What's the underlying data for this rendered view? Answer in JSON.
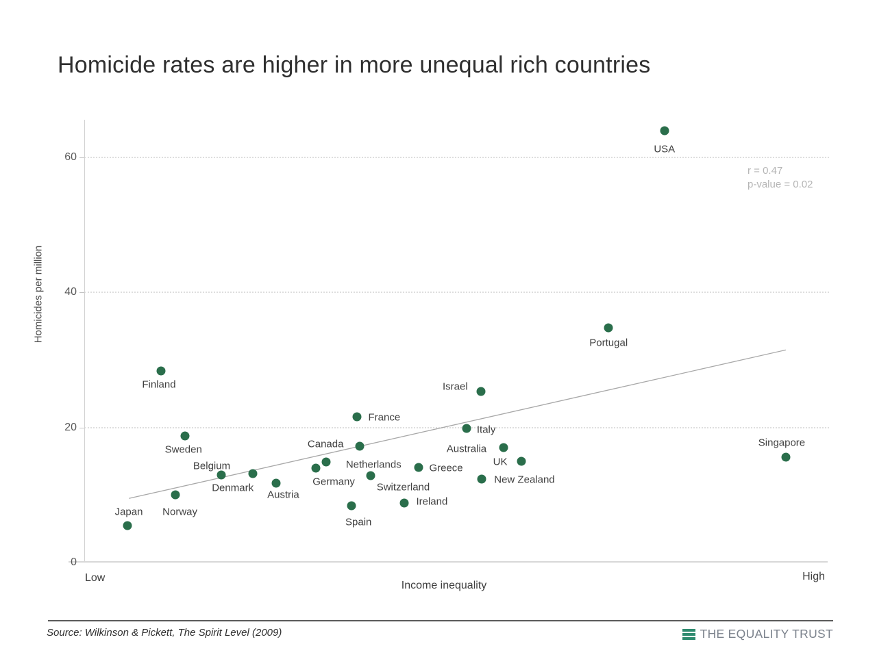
{
  "page": {
    "source": "Source: Wilkinson & Pickett, The Spirit Level (2009)",
    "logo_text": "THE EQUALITY TRUST",
    "colors": {
      "dot_green": "#2a6e4b",
      "logo_green": "#2e8b6f",
      "grid_gray": "#dedede",
      "trend_gray": "#a8a8a8",
      "annotation_gray": "#b5b5b5"
    }
  },
  "chart_data": {
    "type": "scatter",
    "title": "Homicide rates are higher in more unequal rich countries",
    "xlabel": "Income inequality",
    "ylabel": "Homicides per million",
    "x_endpoints": [
      "Low",
      "High"
    ],
    "y_ticks": [
      0,
      20,
      40,
      60
    ],
    "ylim": [
      0,
      65.6
    ],
    "xlim": [
      0,
      1
    ],
    "grid": "dotted horizontal at 20, 40, 60",
    "annotation": {
      "lines": [
        "r = 0.47",
        "p-value = 0.02"
      ]
    },
    "trendline": {
      "x1": 0.06,
      "y1": 9.5,
      "x2": 0.942,
      "y2": 31.5
    },
    "points": [
      {
        "name": "Japan",
        "x": 0.058,
        "y": 5.5,
        "label_offset": [
          2,
          -20
        ]
      },
      {
        "name": "Norway",
        "x": 0.122,
        "y": 10.0,
        "label_offset": [
          7,
          25
        ]
      },
      {
        "name": "Finland",
        "x": 0.103,
        "y": 28.4,
        "label_offset": [
          -3,
          20
        ]
      },
      {
        "name": "Sweden",
        "x": 0.135,
        "y": 18.8,
        "label_offset": [
          -2,
          20
        ]
      },
      {
        "name": "Belgium",
        "x": 0.184,
        "y": 13.0,
        "label_offset": [
          -14,
          -13
        ]
      },
      {
        "name": "Denmark",
        "x": 0.226,
        "y": 13.2,
        "label_offset": [
          -29,
          21
        ]
      },
      {
        "name": "Austria",
        "x": 0.258,
        "y": 11.8,
        "label_offset": [
          10,
          17
        ]
      },
      {
        "name": "Germany",
        "x": 0.311,
        "y": 14.0,
        "label_offset": [
          26,
          20
        ]
      },
      {
        "name": "Netherlands",
        "x": 0.325,
        "y": 14.9,
        "label_offset": [
          69,
          4
        ]
      },
      {
        "name": "Spain",
        "x": 0.359,
        "y": 8.4,
        "label_offset": [
          10,
          24
        ]
      },
      {
        "name": "France",
        "x": 0.366,
        "y": 21.6,
        "label_offset": [
          40,
          1
        ]
      },
      {
        "name": "Canada",
        "x": 0.37,
        "y": 17.2,
        "label_offset": [
          -50,
          -3
        ]
      },
      {
        "name": "Switzerland",
        "x": 0.385,
        "y": 12.9,
        "label_offset": [
          47,
          17
        ]
      },
      {
        "name": "Ireland",
        "x": 0.43,
        "y": 8.8,
        "label_offset": [
          40,
          -2
        ]
      },
      {
        "name": "Greece",
        "x": 0.449,
        "y": 14.1,
        "label_offset": [
          40,
          1
        ]
      },
      {
        "name": "Italy",
        "x": 0.513,
        "y": 19.9,
        "label_offset": [
          29,
          2
        ]
      },
      {
        "name": "Israel",
        "x": 0.533,
        "y": 25.3,
        "label_offset": [
          -38,
          -7
        ]
      },
      {
        "name": "New Zealand",
        "x": 0.534,
        "y": 12.4,
        "label_offset": [
          62,
          1
        ]
      },
      {
        "name": "Australia",
        "x": 0.563,
        "y": 17.0,
        "label_offset": [
          -54,
          2
        ]
      },
      {
        "name": "UK",
        "x": 0.587,
        "y": 15.0,
        "label_offset": [
          -31,
          1
        ]
      },
      {
        "name": "Portugal",
        "x": 0.704,
        "y": 34.8,
        "label_offset": [
          0,
          22
        ]
      },
      {
        "name": "USA",
        "x": 0.779,
        "y": 64.0,
        "label_offset": [
          0,
          27
        ]
      },
      {
        "name": "Singapore",
        "x": 0.942,
        "y": 15.6,
        "label_offset": [
          -6,
          -21
        ]
      }
    ]
  }
}
